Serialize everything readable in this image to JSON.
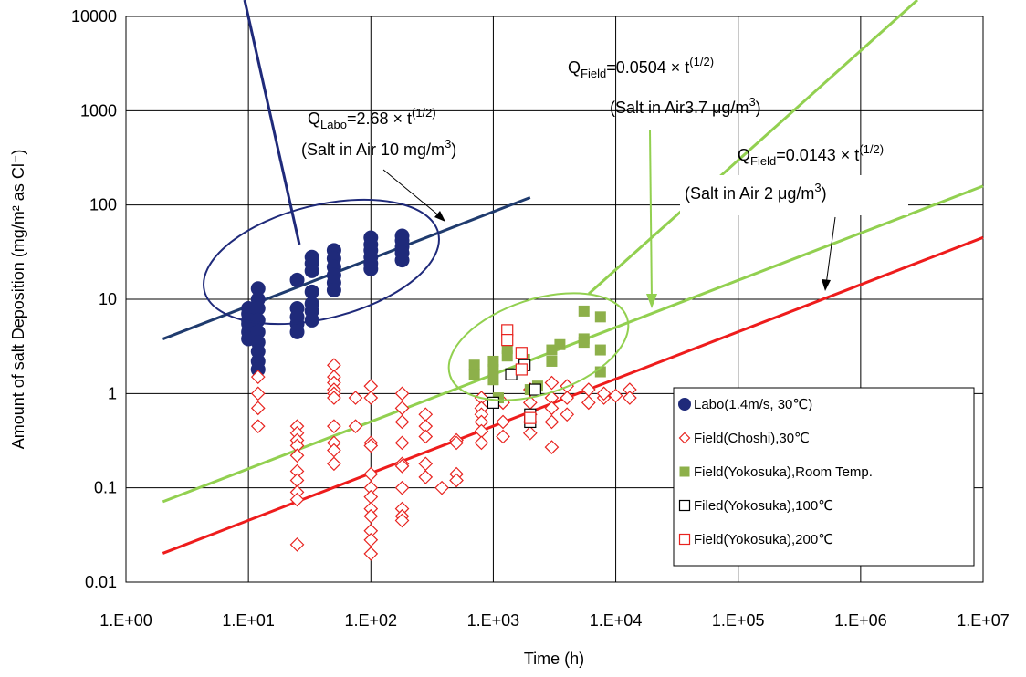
{
  "chart_data": {
    "type": "scatter",
    "x_label": "Time (h)",
    "y_label": "Amount of salt Deposition (mg/m² as Cl⁻)",
    "xscale": "log",
    "yscale": "log",
    "grid": true,
    "legend": "lower right",
    "xlim": [
      1,
      10000000
    ],
    "ylim": [
      0.01,
      10000
    ],
    "xticks": [
      {
        "value": 1,
        "label": "1.E+00"
      },
      {
        "value": 10,
        "label": "1.E+01"
      },
      {
        "value": 100,
        "label": "1.E+02"
      },
      {
        "value": 1000,
        "label": "1.E+03"
      },
      {
        "value": 10000,
        "label": "1.E+04"
      },
      {
        "value": 100000,
        "label": "1.E+05"
      },
      {
        "value": 1000000,
        "label": "1.E+06"
      },
      {
        "value": 10000000,
        "label": "1.E+07"
      }
    ],
    "yticks": [
      0.01,
      0.1,
      1,
      10,
      100,
      1000,
      10000
    ],
    "series": [
      {
        "name": "Labo(1.4m/s, 30℃)",
        "color": "#1f2a7a",
        "marker": "circle",
        "filled": true,
        "x": [
          10,
          10,
          10,
          10,
          10,
          10,
          12,
          12,
          12,
          12,
          12,
          12,
          12,
          12,
          12,
          25,
          25,
          25,
          25,
          25,
          33,
          33,
          33,
          33,
          33,
          33,
          33,
          50,
          50,
          50,
          50,
          50,
          50,
          100,
          100,
          100,
          100,
          100,
          100,
          180,
          180,
          180,
          180,
          180
        ],
        "values": [
          7,
          5.5,
          4.5,
          3.8,
          8,
          6,
          13,
          10,
          8,
          6,
          4.5,
          3.5,
          2.8,
          2.2,
          1.8,
          16,
          8,
          6.5,
          5.5,
          4.5,
          28,
          24,
          20,
          12,
          9,
          7.5,
          6,
          33,
          27,
          22,
          18,
          15,
          12.5,
          45,
          38,
          33,
          28,
          24,
          21,
          47,
          42,
          36,
          31,
          26
        ]
      },
      {
        "name": "Field(Choshi),30℃",
        "color": "#e8231f",
        "marker": "diamond",
        "filled": false,
        "x": [
          12,
          12,
          12,
          12,
          25,
          25,
          25,
          25,
          25,
          25,
          25,
          25,
          25,
          25,
          50,
          50,
          50,
          50,
          50,
          50,
          50,
          50,
          50,
          50,
          75,
          75,
          100,
          100,
          100,
          100,
          100,
          100,
          100,
          100,
          100,
          100,
          100,
          100,
          180,
          180,
          180,
          180,
          180,
          180,
          180,
          180,
          180,
          180,
          280,
          280,
          280,
          280,
          280,
          380,
          500,
          500,
          500,
          500,
          800,
          800,
          800,
          800,
          800,
          800,
          1200,
          1200,
          1200,
          2000,
          2000,
          2000,
          2000,
          2000,
          3000,
          3000,
          3000,
          3000,
          3000,
          4000,
          4000,
          4000,
          6000,
          6000,
          8000,
          8000,
          10000,
          13000,
          13000
        ],
        "values": [
          1.5,
          1,
          0.7,
          0.45,
          0.45,
          0.38,
          0.32,
          0.28,
          0.22,
          0.15,
          0.12,
          0.09,
          0.075,
          0.025,
          2,
          1.5,
          1.3,
          1.1,
          1,
          0.9,
          0.45,
          0.3,
          0.25,
          0.18,
          0.9,
          0.45,
          1.2,
          0.9,
          0.3,
          0.28,
          0.14,
          0.1,
          0.08,
          0.06,
          0.05,
          0.035,
          0.028,
          0.02,
          1,
          0.7,
          0.5,
          0.3,
          0.18,
          0.17,
          0.1,
          0.06,
          0.05,
          0.045,
          0.6,
          0.45,
          0.35,
          0.18,
          0.13,
          0.1,
          0.32,
          0.3,
          0.14,
          0.12,
          0.9,
          0.7,
          0.6,
          0.5,
          0.4,
          0.3,
          0.8,
          0.5,
          0.35,
          1.1,
          0.8,
          0.6,
          0.5,
          0.38,
          1.3,
          0.9,
          0.7,
          0.5,
          0.27,
          1.2,
          0.9,
          0.6,
          1.1,
          0.8,
          0.9,
          1,
          0.95,
          1.1,
          0.9
        ]
      },
      {
        "name": "Field(Yokosuka),Room Temp.",
        "color": "#8db04a",
        "marker": "square",
        "filled": true,
        "x": [
          700,
          700,
          1000,
          1000,
          1000,
          1300,
          1300,
          1800,
          1800,
          2300,
          3000,
          3000,
          3500,
          5500,
          5500,
          5500,
          7500,
          7500,
          7500,
          2000,
          1100
        ],
        "values": [
          2,
          1.6,
          2.2,
          1.8,
          1.4,
          3,
          2.5,
          2,
          2.3,
          1.2,
          2.9,
          2.2,
          3.3,
          7.5,
          3.8,
          3.5,
          6.5,
          2.9,
          1.7,
          1.1,
          0.9
        ]
      },
      {
        "name": "Filed(Yokosuka),100℃",
        "color": "#000000",
        "marker": "square",
        "filled": false,
        "x": [
          1000,
          1400,
          1800,
          2000,
          2000,
          2200
        ],
        "values": [
          0.8,
          1.6,
          2,
          0.6,
          0.5,
          1.1
        ]
      },
      {
        "name": "Field(Yokosuka),200℃",
        "color": "#e8231f",
        "marker": "square",
        "filled": false,
        "x": [
          1300,
          1300,
          1700,
          1700,
          2000
        ],
        "values": [
          4.7,
          3.7,
          2.7,
          1.8,
          0.55
        ]
      }
    ],
    "lines": [
      {
        "color": "#1f3b6e",
        "x": [
          2,
          2000
        ],
        "values": [
          3.79,
          120
        ]
      },
      {
        "color": "#92d050",
        "x": [
          2,
          10000000
        ],
        "values": [
          0.0713,
          159
        ]
      },
      {
        "color": "#ee1c1c",
        "x": [
          2,
          10000000
        ],
        "values": [
          0.0202,
          45.2
        ]
      }
    ],
    "annotations": [
      {
        "q": "Q",
        "sub": "Labo",
        "eq": "=2.68 × t",
        "sup": "(1/2)",
        "note": "(Salt in Air 10 mg/m",
        "note_sup": "3",
        "note_end": ")"
      },
      {
        "q": "Q",
        "sub": "Field",
        "eq": "=0.0504 × t",
        "sup": "(1/2)",
        "note": "(Salt in Air3.7 μg/m",
        "note_sup": "3",
        "note_end": ")"
      },
      {
        "q": "Q",
        "sub": "Field",
        "eq": "=0.0143 × t",
        "sup": "(1/2)",
        "note": "(Salt in Air 2 μg/m",
        "note_sup": "3",
        "note_end": ")"
      }
    ]
  }
}
